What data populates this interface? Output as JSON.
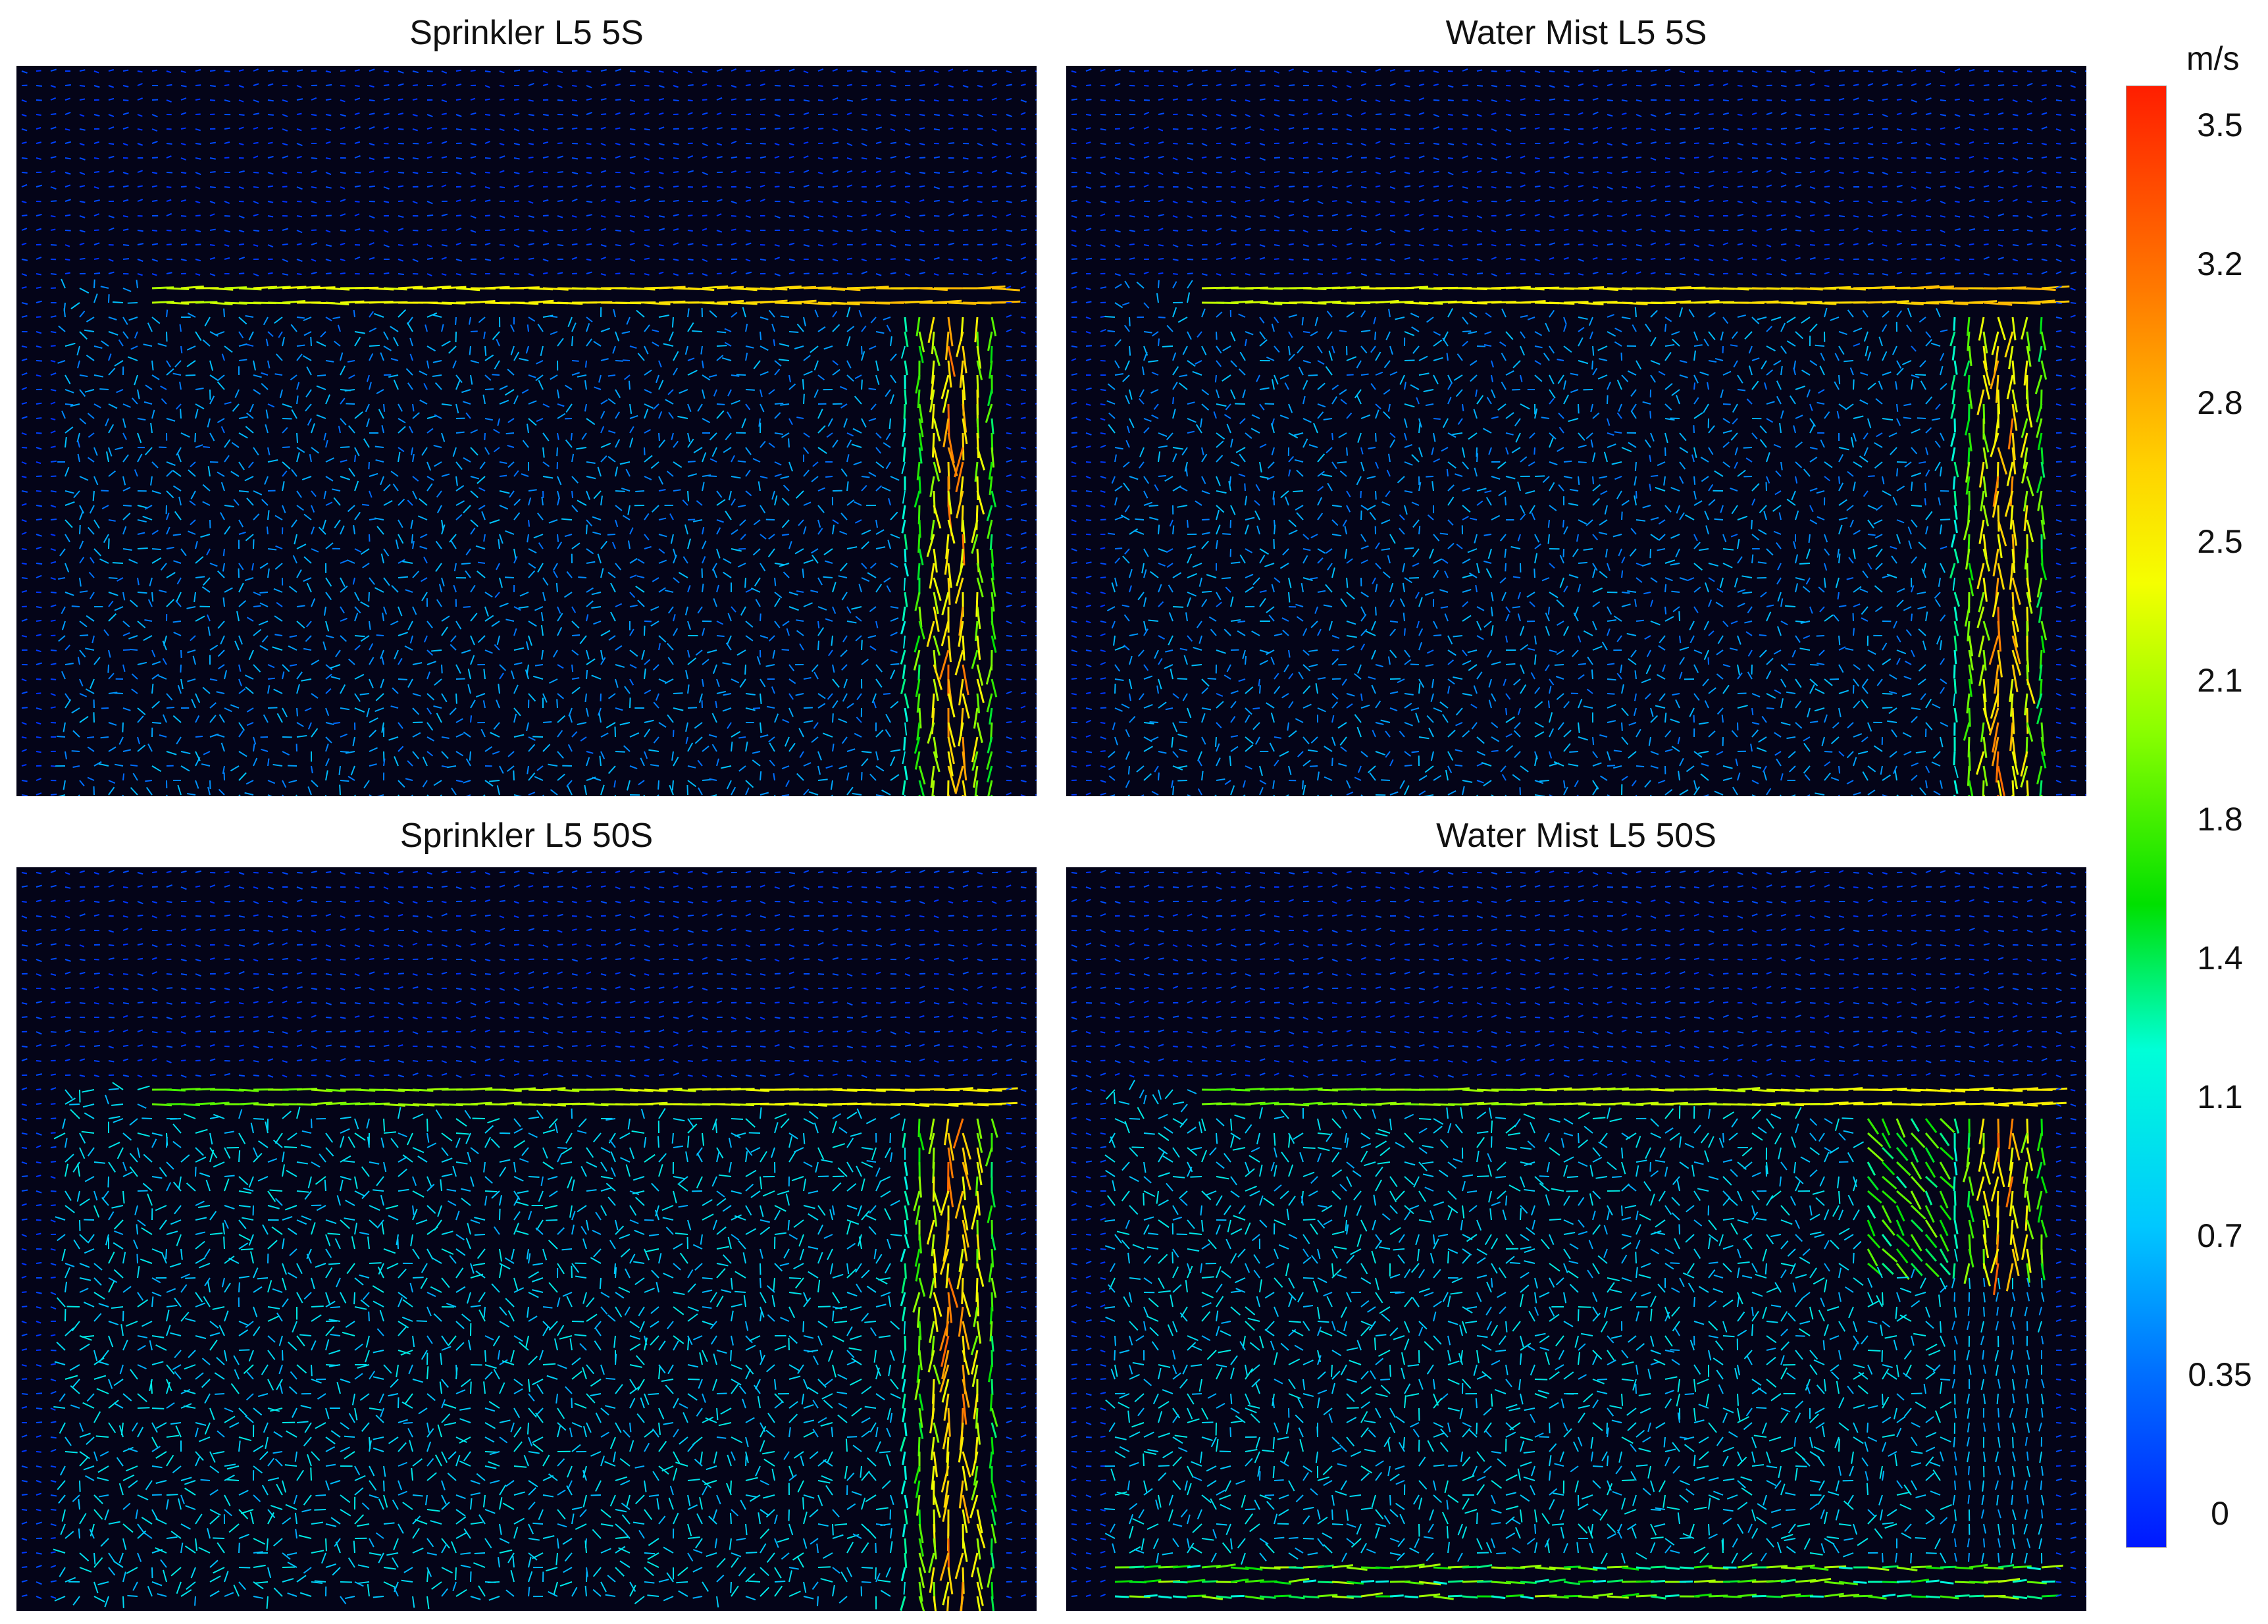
{
  "panels": [
    {
      "title": "Sprinkler L5 5S"
    },
    {
      "title": "Water Mist L5 5S"
    },
    {
      "title": "Sprinkler L5 50S"
    },
    {
      "title": "Water Mist L5 50S"
    }
  ],
  "colorbar": {
    "unit": "m/s",
    "ticks": [
      "3.5",
      "3.2",
      "2.8",
      "2.5",
      "2.1",
      "1.8",
      "1.4",
      "1.1",
      "0.7",
      "0.35",
      "0"
    ],
    "range": [
      0,
      3.6
    ],
    "colors": [
      "#0018ff",
      "#0070ff",
      "#00c8ff",
      "#00ffd8",
      "#00e000",
      "#8cff00",
      "#f5ff00",
      "#ffd200",
      "#ff7a00",
      "#ff1e00"
    ]
  },
  "chart_data": {
    "type": "heatmap",
    "description_type": "velocity vector fields",
    "colorbar_label": "m/s",
    "colorbar_range": [
      0,
      3.6
    ],
    "panels": [
      "Sprinkler L5 5S",
      "Water Mist L5 5S",
      "Sprinkler L5 50S",
      "Water Mist L5 50S"
    ]
  }
}
